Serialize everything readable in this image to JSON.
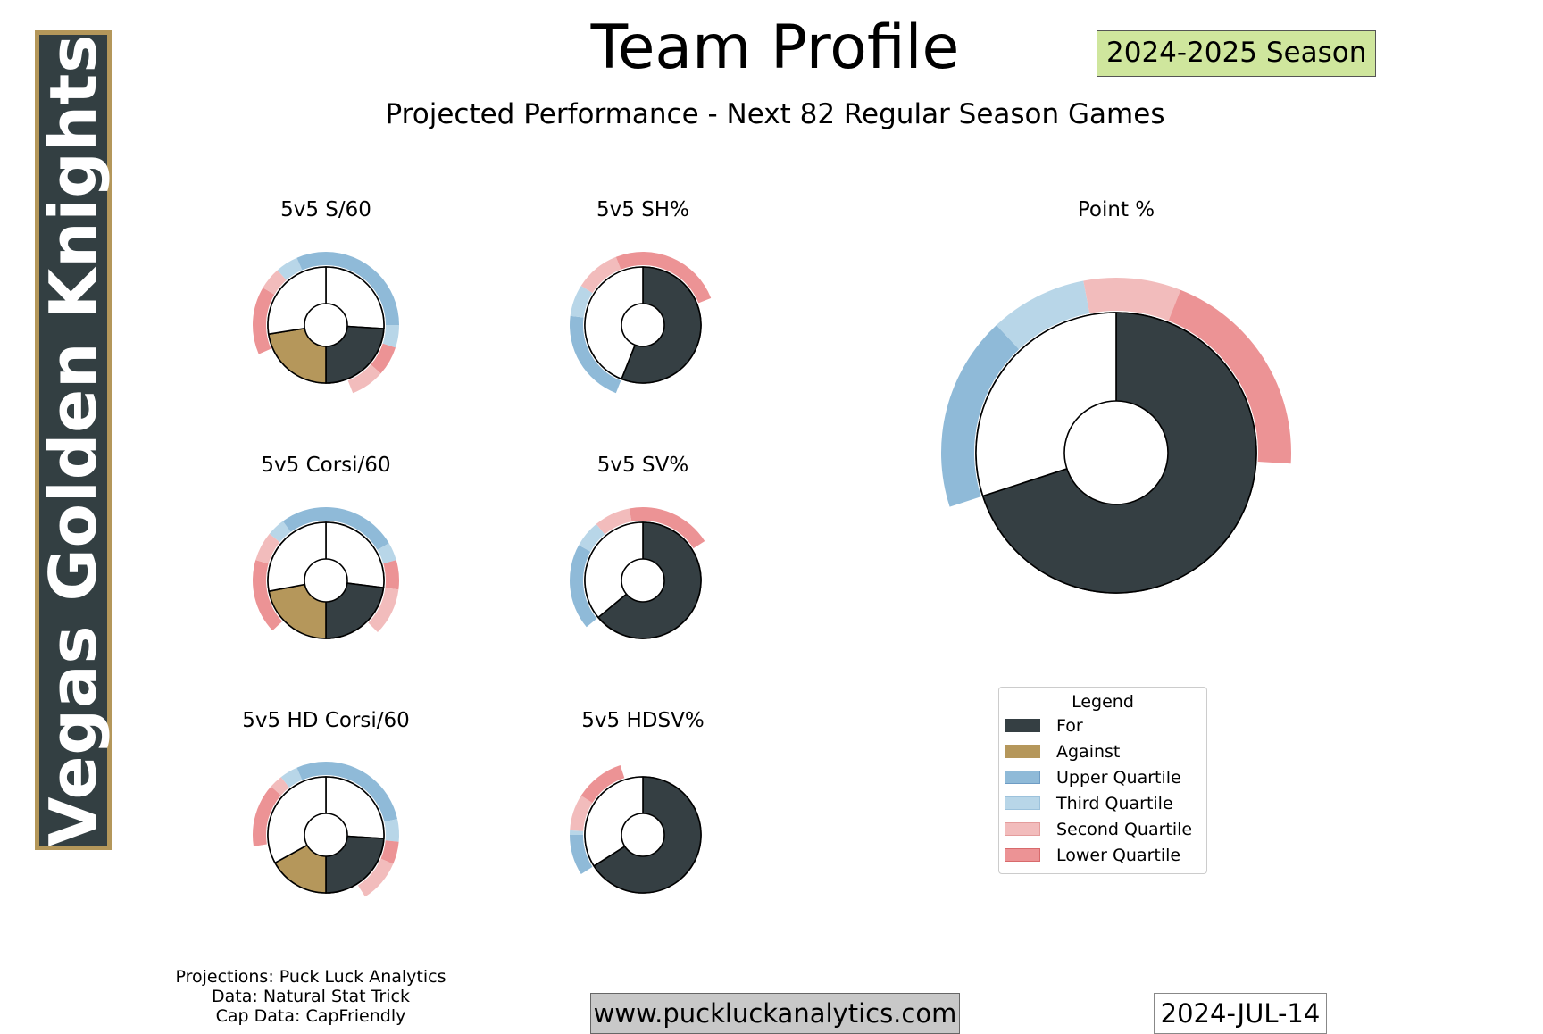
{
  "team": {
    "name": "Vegas Golden Knights"
  },
  "header": {
    "title": "Team Profile",
    "season": "2024-2025 Season",
    "subtitle": "Projected Performance - Next 82 Regular Season Games"
  },
  "colors": {
    "for": "#353f43",
    "against": "#b5975b",
    "upper_quartile": "#8fbad8",
    "third_quartile": "#b8d6e8",
    "second_quartile": "#f2bcbc",
    "lower_quartile": "#ec9395",
    "team_primary": "#333f42",
    "team_accent": "#b4975a",
    "season_badge": "#cfe69d"
  },
  "legend": {
    "title": "Legend",
    "items": [
      {
        "label": "For",
        "color": "#353f43",
        "edge": "#353f43"
      },
      {
        "label": "Against",
        "color": "#b5975b",
        "edge": "#b5975b"
      },
      {
        "label": "Upper Quartile",
        "color": "#8fbad8",
        "edge": "#6e9cc4"
      },
      {
        "label": "Third Quartile",
        "color": "#b8d6e8",
        "edge": "#9cc2dc"
      },
      {
        "label": "Second Quartile",
        "color": "#f2bcbc",
        "edge": "#e49c9c"
      },
      {
        "label": "Lower Quartile",
        "color": "#ec9395",
        "edge": "#d86a6c"
      }
    ]
  },
  "chart_data": [
    {
      "type": "pie",
      "title": "5v5 S/60",
      "style": "donut",
      "slices": [
        {
          "name": "For",
          "share": 0.48,
          "filled": true
        },
        {
          "name": "For (remaining)",
          "share": 0.52,
          "filled": false
        }
      ],
      "secondary_slices": [
        {
          "name": "Against",
          "share": 0.45,
          "filled": true
        },
        {
          "name": "Against (remaining)",
          "share": 0.55,
          "filled": false
        }
      ],
      "outer_ring": [
        {
          "side": "for",
          "quartile": "upper",
          "share": 0.5
        },
        {
          "side": "for",
          "quartile": "third",
          "share": 0.1
        },
        {
          "side": "for",
          "quartile": "lower",
          "share": 0.13
        },
        {
          "side": "for",
          "quartile": "second",
          "share": 0.15
        },
        {
          "side": "against",
          "quartile": "upper",
          "share": 0.13
        },
        {
          "side": "against",
          "quartile": "third",
          "share": 0.1
        },
        {
          "side": "against",
          "quartile": "second",
          "share": 0.1
        },
        {
          "side": "against",
          "quartile": "lower",
          "share": 0.3
        }
      ]
    },
    {
      "type": "pie",
      "title": "5v5 SH%",
      "style": "donut",
      "slices": [
        {
          "name": "For",
          "share": 0.56,
          "filled": true
        },
        {
          "name": "For (remaining)",
          "share": 0.44,
          "filled": false
        }
      ],
      "outer_ring": [
        {
          "quartile": "upper",
          "share": 0.21
        },
        {
          "quartile": "third",
          "share": 0.07
        },
        {
          "quartile": "second",
          "share": 0.1
        },
        {
          "quartile": "lower",
          "share": 0.25
        }
      ]
    },
    {
      "type": "pie",
      "title": "5v5 Corsi/60",
      "style": "donut",
      "slices": [
        {
          "name": "For",
          "share": 0.46,
          "filled": true
        },
        {
          "name": "For (remaining)",
          "share": 0.54,
          "filled": false
        }
      ],
      "secondary_slices": [
        {
          "name": "Against",
          "share": 0.44,
          "filled": true
        },
        {
          "name": "Against (remaining)",
          "share": 0.56,
          "filled": false
        }
      ],
      "outer_ring": [
        {
          "side": "for",
          "quartile": "upper",
          "share": 0.33
        },
        {
          "side": "for",
          "quartile": "third",
          "share": 0.08
        },
        {
          "side": "for",
          "quartile": "lower",
          "share": 0.13
        },
        {
          "side": "for",
          "quartile": "second",
          "share": 0.21
        },
        {
          "side": "against",
          "quartile": "upper",
          "share": 0.2
        },
        {
          "side": "against",
          "quartile": "third",
          "share": 0.08
        },
        {
          "side": "against",
          "quartile": "second",
          "share": 0.13
        },
        {
          "side": "against",
          "quartile": "lower",
          "share": 0.33
        }
      ]
    },
    {
      "type": "pie",
      "title": "5v5 SV%",
      "style": "donut",
      "slices": [
        {
          "name": "For",
          "share": 0.64,
          "filled": true
        },
        {
          "name": "For (remaining)",
          "share": 0.36,
          "filled": false
        }
      ],
      "outer_ring": [
        {
          "quartile": "upper",
          "share": 0.19
        },
        {
          "quartile": "third",
          "share": 0.06
        },
        {
          "quartile": "second",
          "share": 0.08
        },
        {
          "quartile": "lower",
          "share": 0.19
        }
      ]
    },
    {
      "type": "pie",
      "title": "5v5 HD Corsi/60",
      "style": "donut",
      "slices": [
        {
          "name": "For",
          "share": 0.48,
          "filled": true
        },
        {
          "name": "For (remaining)",
          "share": 0.52,
          "filled": false
        }
      ],
      "secondary_slices": [
        {
          "name": "Against",
          "share": 0.34,
          "filled": true
        },
        {
          "name": "Against (remaining)",
          "share": 0.66,
          "filled": false
        }
      ],
      "outer_ring": [
        {
          "side": "for",
          "quartile": "upper",
          "share": 0.43
        },
        {
          "side": "for",
          "quartile": "third",
          "share": 0.1
        },
        {
          "side": "for",
          "quartile": "lower",
          "share": 0.1
        },
        {
          "side": "for",
          "quartile": "second",
          "share": 0.19
        },
        {
          "side": "against",
          "quartile": "upper",
          "share": 0.13
        },
        {
          "side": "against",
          "quartile": "third",
          "share": 0.08
        },
        {
          "side": "against",
          "quartile": "second",
          "share": 0.06
        },
        {
          "side": "against",
          "quartile": "lower",
          "share": 0.28
        }
      ]
    },
    {
      "type": "pie",
      "title": "5v5 HDSV%",
      "style": "donut",
      "slices": [
        {
          "name": "For",
          "share": 0.66,
          "filled": true
        },
        {
          "name": "For (remaining)",
          "share": 0.34,
          "filled": false
        }
      ],
      "outer_ring": [
        {
          "quartile": "upper",
          "share": 0.09
        },
        {
          "quartile": "third",
          "share": 0.01
        },
        {
          "quartile": "second",
          "share": 0.08
        },
        {
          "quartile": "lower",
          "share": 0.11
        }
      ]
    },
    {
      "type": "pie",
      "title": "Point %",
      "style": "donut",
      "slices": [
        {
          "name": "For",
          "share": 0.7,
          "filled": true
        },
        {
          "name": "For (remaining)",
          "share": 0.3,
          "filled": false
        }
      ],
      "outer_ring": [
        {
          "quartile": "upper",
          "share": 0.18
        },
        {
          "quartile": "third",
          "share": 0.09
        },
        {
          "quartile": "second",
          "share": 0.09
        },
        {
          "quartile": "lower",
          "share": 0.2
        }
      ]
    }
  ],
  "footer": {
    "credits": [
      "Projections: Puck Luck Analytics",
      "Data: Natural Stat Trick",
      "Cap Data: CapFriendly"
    ],
    "website": "www.puckluckanalytics.com",
    "date": "2024-JUL-14"
  }
}
